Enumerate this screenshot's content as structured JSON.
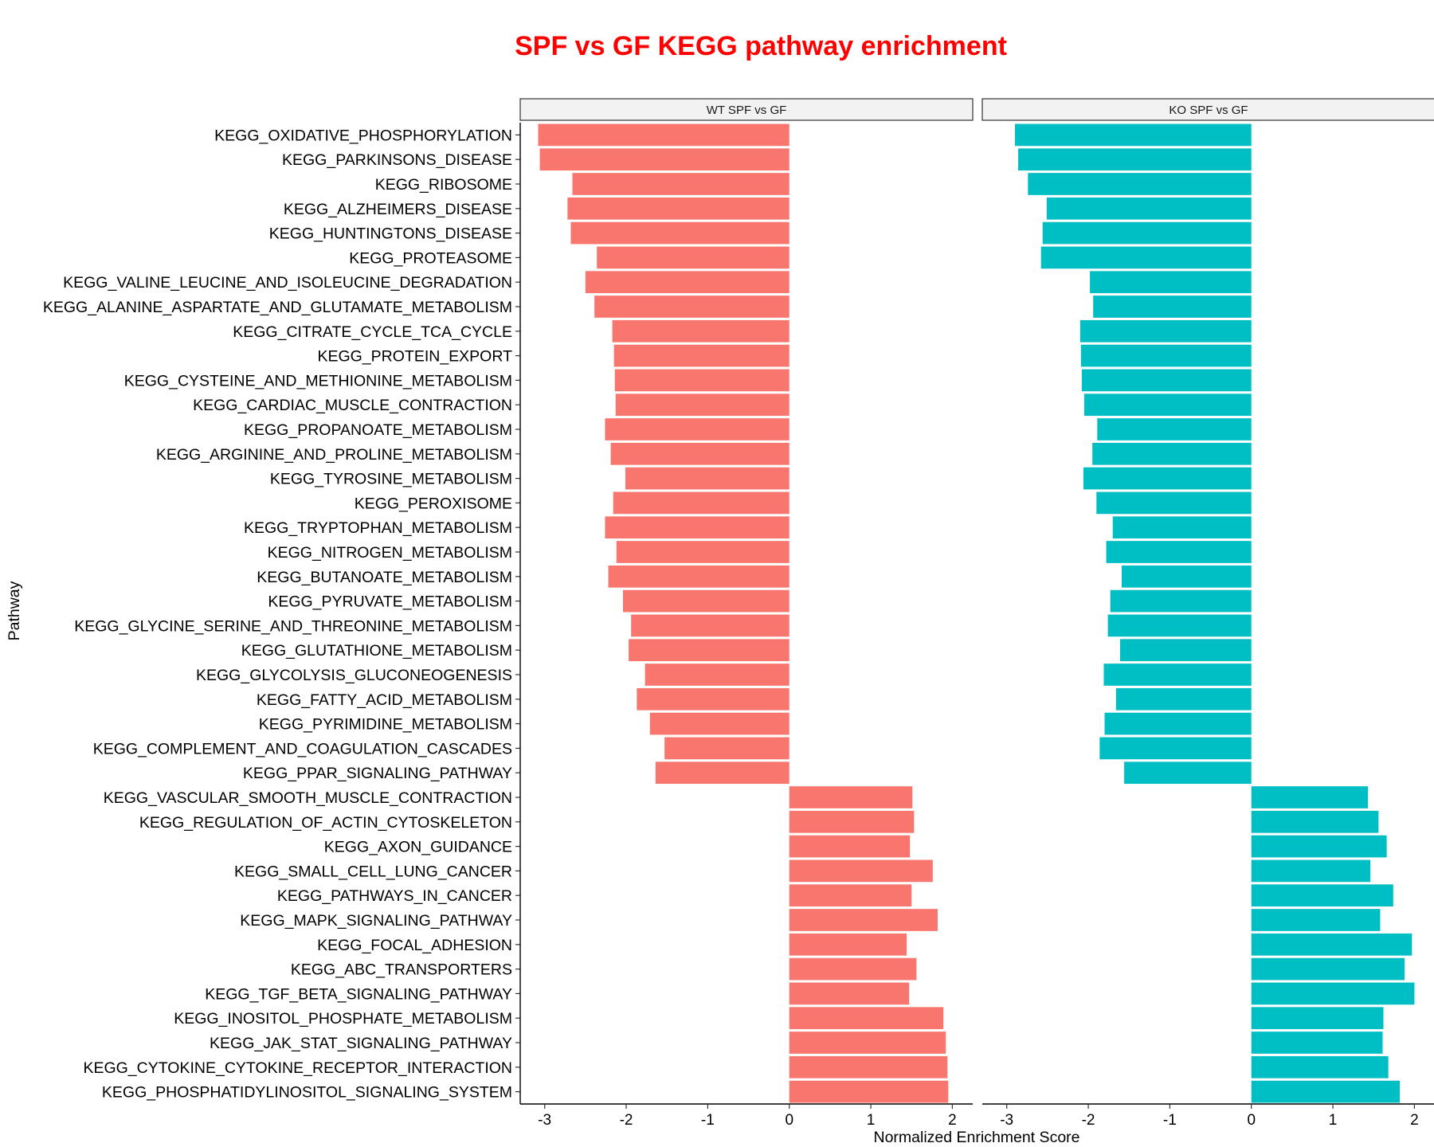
{
  "chart_data": {
    "type": "bar",
    "orientation": "horizontal",
    "title": "SPF vs GF KEGG pathway enrichment",
    "title_color": "#ff0000",
    "xlabel": "Normalized Enrichment Score",
    "ylabel": "Pathway",
    "xlim": [
      -3.3,
      2.25
    ],
    "xticks": [
      -3,
      -2,
      -1,
      0,
      1,
      2
    ],
    "grid": false,
    "categories": [
      "KEGG_OXIDATIVE_PHOSPHORYLATION",
      "KEGG_PARKINSONS_DISEASE",
      "KEGG_RIBOSOME",
      "KEGG_ALZHEIMERS_DISEASE",
      "KEGG_HUNTINGTONS_DISEASE",
      "KEGG_PROTEASOME",
      "KEGG_VALINE_LEUCINE_AND_ISOLEUCINE_DEGRADATION",
      "KEGG_ALANINE_ASPARTATE_AND_GLUTAMATE_METABOLISM",
      "KEGG_CITRATE_CYCLE_TCA_CYCLE",
      "KEGG_PROTEIN_EXPORT",
      "KEGG_CYSTEINE_AND_METHIONINE_METABOLISM",
      "KEGG_CARDIAC_MUSCLE_CONTRACTION",
      "KEGG_PROPANOATE_METABOLISM",
      "KEGG_ARGININE_AND_PROLINE_METABOLISM",
      "KEGG_TYROSINE_METABOLISM",
      "KEGG_PEROXISOME",
      "KEGG_TRYPTOPHAN_METABOLISM",
      "KEGG_NITROGEN_METABOLISM",
      "KEGG_BUTANOATE_METABOLISM",
      "KEGG_PYRUVATE_METABOLISM",
      "KEGG_GLYCINE_SERINE_AND_THREONINE_METABOLISM",
      "KEGG_GLUTATHIONE_METABOLISM",
      "KEGG_GLYCOLYSIS_GLUCONEOGENESIS",
      "KEGG_FATTY_ACID_METABOLISM",
      "KEGG_PYRIMIDINE_METABOLISM",
      "KEGG_COMPLEMENT_AND_COAGULATION_CASCADES",
      "KEGG_PPAR_SIGNALING_PATHWAY",
      "KEGG_VASCULAR_SMOOTH_MUSCLE_CONTRACTION",
      "KEGG_REGULATION_OF_ACTIN_CYTOSKELETON",
      "KEGG_AXON_GUIDANCE",
      "KEGG_SMALL_CELL_LUNG_CANCER",
      "KEGG_PATHWAYS_IN_CANCER",
      "KEGG_MAPK_SIGNALING_PATHWAY",
      "KEGG_FOCAL_ADHESION",
      "KEGG_ABC_TRANSPORTERS",
      "KEGG_TGF_BETA_SIGNALING_PATHWAY",
      "KEGG_INOSITOL_PHOSPHATE_METABOLISM",
      "KEGG_JAK_STAT_SIGNALING_PATHWAY",
      "KEGG_CYTOKINE_CYTOKINE_RECEPTOR_INTERACTION",
      "KEGG_PHOSPHATIDYLINOSITOL_SIGNALING_SYSTEM"
    ],
    "panels": [
      {
        "name": "WT SPF vs GF",
        "color": "#f8766d",
        "values": [
          -3.08,
          -3.06,
          -2.66,
          -2.72,
          -2.68,
          -2.36,
          -2.5,
          -2.39,
          -2.17,
          -2.15,
          -2.14,
          -2.13,
          -2.26,
          -2.19,
          -2.01,
          -2.16,
          -2.26,
          -2.12,
          -2.22,
          -2.04,
          -1.94,
          -1.97,
          -1.77,
          -1.87,
          -1.71,
          -1.53,
          -1.64,
          1.51,
          1.53,
          1.48,
          1.76,
          1.5,
          1.82,
          1.44,
          1.56,
          1.47,
          1.89,
          1.92,
          1.94,
          1.95
        ]
      },
      {
        "name": "KO SPF vs GF",
        "color": "#00bfc4",
        "values": [
          -2.9,
          -2.86,
          -2.74,
          -2.51,
          -2.56,
          -2.58,
          -1.98,
          -1.94,
          -2.1,
          -2.09,
          -2.08,
          -2.05,
          -1.89,
          -1.95,
          -2.06,
          -1.9,
          -1.7,
          -1.78,
          -1.59,
          -1.73,
          -1.76,
          -1.61,
          -1.81,
          -1.66,
          -1.8,
          -1.86,
          -1.56,
          1.43,
          1.56,
          1.66,
          1.46,
          1.74,
          1.58,
          1.97,
          1.88,
          2.0,
          1.62,
          1.61,
          1.68,
          1.82
        ]
      }
    ]
  }
}
